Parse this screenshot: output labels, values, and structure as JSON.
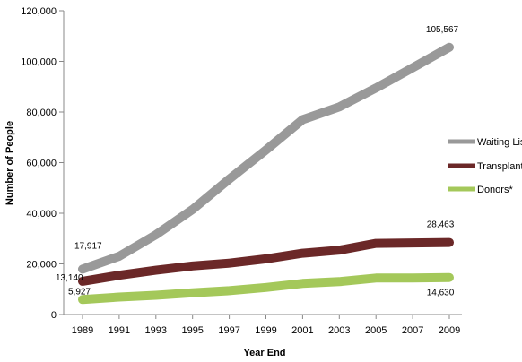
{
  "chart_data": {
    "type": "line",
    "title": "",
    "xlabel": "Year End",
    "ylabel": "Number of People",
    "ylim": [
      0,
      120000
    ],
    "yticks": [
      0,
      20000,
      40000,
      60000,
      80000,
      100000,
      120000
    ],
    "ytick_labels": [
      "0",
      "20,000",
      "40,000",
      "60,000",
      "80,000",
      "100,000",
      "120,000"
    ],
    "x": [
      1989,
      1991,
      1993,
      1995,
      1997,
      1999,
      2001,
      2003,
      2005,
      2007,
      2009
    ],
    "x_tick_labels": [
      "1989",
      "1991",
      "1993",
      "1995",
      "1997",
      "1999",
      "2001",
      "2003",
      "2005",
      "2007",
      "2009"
    ],
    "grid": false,
    "legend": "right",
    "series": [
      {
        "name": "Waiting List",
        "color": "#999999",
        "values": [
          17917,
          23000,
          31500,
          41500,
          53500,
          65000,
          77000,
          82000,
          89500,
          97500,
          105567
        ],
        "labels": [
          {
            "index": 0,
            "text": "17,917"
          },
          {
            "index": 10,
            "text": "105,567"
          }
        ]
      },
      {
        "name": "Transplants",
        "color": "#6b2828",
        "values": [
          13140,
          15500,
          17500,
          19200,
          20300,
          22000,
          24200,
          25400,
          28100,
          28300,
          28463
        ],
        "labels": [
          {
            "index": 0,
            "text": "13,140"
          },
          {
            "index": 10,
            "text": "28,463"
          }
        ]
      },
      {
        "name": "Donors*",
        "color": "#a4c85a",
        "values": [
          5927,
          6900,
          7600,
          8600,
          9400,
          10700,
          12300,
          13000,
          14400,
          14400,
          14630
        ],
        "labels": [
          {
            "index": 0,
            "text": "5,927"
          },
          {
            "index": 10,
            "text": "14,630"
          }
        ]
      }
    ]
  }
}
